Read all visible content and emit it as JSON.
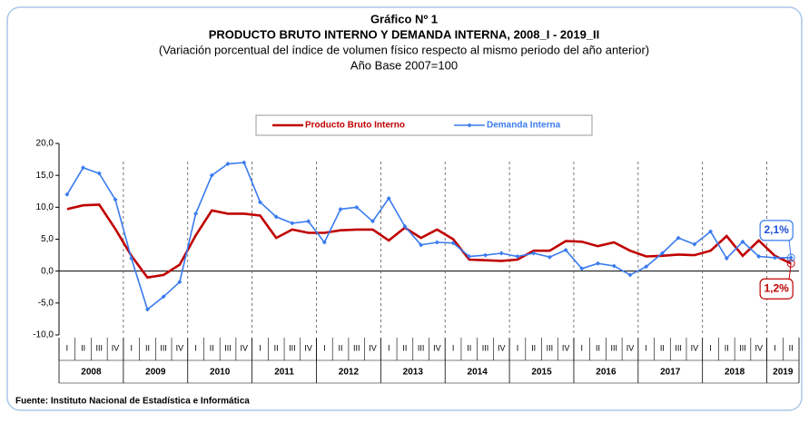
{
  "chart_data": {
    "type": "line",
    "title": "Gráfico Nº 1",
    "subtitle": "PRODUCTO BRUTO INTERNO Y DEMANDA INTERNA, 2008_I - 2019_II",
    "description": "(Variación porcentual del índice de volumen físico respecto al mismo periodo del año anterior)",
    "base": "Año Base 2007=100",
    "source": "Fuente: Instituto Nacional de Estadística e Informática",
    "categories": [
      "I",
      "II",
      "III",
      "IV",
      "I",
      "II",
      "III",
      "IV",
      "I",
      "II",
      "III",
      "IV",
      "I",
      "II",
      "III",
      "IV",
      "I",
      "II",
      "III",
      "IV",
      "I",
      "II",
      "III",
      "IV",
      "I",
      "II",
      "III",
      "IV",
      "I",
      "II",
      "III",
      "IV",
      "I",
      "II",
      "III",
      "IV",
      "I",
      "II",
      "III",
      "IV",
      "I",
      "II",
      "III",
      "IV",
      "I",
      "II"
    ],
    "years": [
      "2008",
      "2009",
      "2010",
      "2011",
      "2012",
      "2013",
      "2014",
      "2015",
      "2016",
      "2017",
      "2018",
      "2019"
    ],
    "series": [
      {
        "name": "Producto Bruto Interno",
        "color": "#c00000",
        "values": [
          9.7,
          10.3,
          10.4,
          6.6,
          2.4,
          -1.0,
          -0.6,
          1.0,
          5.6,
          9.5,
          9.0,
          9.0,
          8.7,
          5.2,
          6.5,
          6.0,
          6.0,
          6.4,
          6.5,
          6.5,
          4.8,
          6.8,
          5.2,
          6.5,
          5.0,
          1.8,
          1.7,
          1.6,
          1.8,
          3.2,
          3.2,
          4.7,
          4.6,
          3.9,
          4.5,
          3.2,
          2.3,
          2.4,
          2.6,
          2.5,
          3.2,
          5.5,
          2.4,
          4.8,
          2.4,
          1.2
        ],
        "value_labels": [
          null,
          null,
          null,
          null,
          null,
          null,
          null,
          null,
          null,
          null,
          null,
          null,
          null,
          null,
          null,
          null,
          null,
          null,
          null,
          null,
          null,
          null,
          null,
          null,
          null,
          null,
          null,
          null,
          null,
          null,
          null,
          null,
          null,
          null,
          null,
          null,
          null,
          null,
          null,
          null,
          null,
          null,
          null,
          null,
          null,
          "1,2%"
        ]
      },
      {
        "name": "Demanda Interna",
        "color": "#3a7bef",
        "values": [
          12.0,
          16.2,
          15.3,
          11.2,
          2.0,
          -6.0,
          -4.0,
          -1.7,
          9.0,
          15.0,
          16.8,
          17.0,
          10.8,
          8.5,
          7.5,
          7.8,
          4.5,
          9.7,
          10.0,
          7.8,
          11.4,
          7.0,
          4.1,
          4.5,
          4.4,
          2.3,
          2.5,
          2.8,
          2.3,
          2.8,
          2.2,
          3.3,
          0.4,
          1.2,
          0.8,
          -0.6,
          0.7,
          2.8,
          5.2,
          4.2,
          6.2,
          2.0,
          4.6,
          2.3,
          2.1,
          2.1
        ],
        "value_labels": [
          null,
          null,
          null,
          null,
          null,
          null,
          null,
          null,
          null,
          null,
          null,
          null,
          null,
          null,
          null,
          null,
          null,
          null,
          null,
          null,
          null,
          null,
          null,
          null,
          null,
          null,
          null,
          null,
          null,
          null,
          null,
          null,
          null,
          null,
          null,
          null,
          null,
          null,
          null,
          null,
          null,
          null,
          null,
          null,
          null,
          "2,1%"
        ]
      }
    ],
    "ylim": [
      -10,
      20
    ],
    "yticks": [
      {
        "value": -10,
        "label": "-10,0"
      },
      {
        "value": -5,
        "label": "-5,0"
      },
      {
        "value": 0,
        "label": "0,0"
      },
      {
        "value": 5,
        "label": "5,0"
      },
      {
        "value": 10,
        "label": "10,0"
      },
      {
        "value": 15,
        "label": "15,0"
      },
      {
        "value": 20,
        "label": "20,0"
      }
    ],
    "grid": false
  }
}
